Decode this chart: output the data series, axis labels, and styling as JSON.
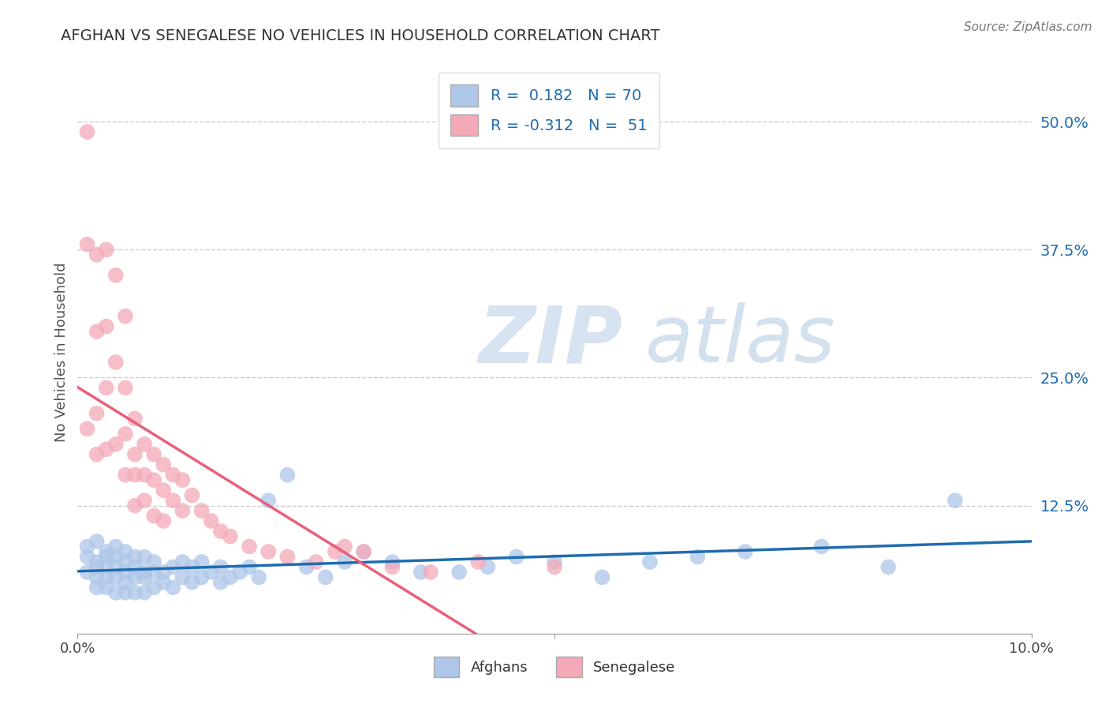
{
  "title": "AFGHAN VS SENEGALESE NO VEHICLES IN HOUSEHOLD CORRELATION CHART",
  "source": "Source: ZipAtlas.com",
  "ylabel": "No Vehicles in Household",
  "xlim": [
    0.0,
    0.1
  ],
  "ylim": [
    0.0,
    0.55
  ],
  "ytick_positions": [
    0.0,
    0.125,
    0.25,
    0.375,
    0.5
  ],
  "yticklabels": [
    "",
    "12.5%",
    "25.0%",
    "37.5%",
    "50.0%"
  ],
  "grid_color": "#cccccc",
  "background_color": "#ffffff",
  "afghan_color": "#aec6e8",
  "senegalese_color": "#f4a9b8",
  "afghan_line_color": "#1f6cb0",
  "senegalese_line_color": "#e8607a",
  "watermark_zip": "ZIP",
  "watermark_atlas": "atlas",
  "afghan_r": 0.182,
  "afghan_n": 70,
  "senegalese_r": -0.312,
  "senegalese_n": 51,
  "afghan_points_x": [
    0.001,
    0.001,
    0.001,
    0.002,
    0.002,
    0.002,
    0.002,
    0.002,
    0.003,
    0.003,
    0.003,
    0.003,
    0.003,
    0.004,
    0.004,
    0.004,
    0.004,
    0.004,
    0.005,
    0.005,
    0.005,
    0.005,
    0.005,
    0.006,
    0.006,
    0.006,
    0.006,
    0.007,
    0.007,
    0.007,
    0.007,
    0.008,
    0.008,
    0.008,
    0.009,
    0.009,
    0.01,
    0.01,
    0.011,
    0.011,
    0.012,
    0.012,
    0.013,
    0.013,
    0.014,
    0.015,
    0.015,
    0.016,
    0.017,
    0.018,
    0.019,
    0.02,
    0.022,
    0.024,
    0.026,
    0.028,
    0.03,
    0.033,
    0.036,
    0.04,
    0.043,
    0.046,
    0.05,
    0.055,
    0.06,
    0.065,
    0.07,
    0.078,
    0.085,
    0.092
  ],
  "afghan_points_y": [
    0.06,
    0.075,
    0.085,
    0.045,
    0.055,
    0.065,
    0.07,
    0.09,
    0.045,
    0.055,
    0.065,
    0.075,
    0.08,
    0.04,
    0.055,
    0.065,
    0.075,
    0.085,
    0.04,
    0.05,
    0.06,
    0.07,
    0.08,
    0.04,
    0.055,
    0.065,
    0.075,
    0.04,
    0.055,
    0.06,
    0.075,
    0.045,
    0.06,
    0.07,
    0.05,
    0.06,
    0.045,
    0.065,
    0.055,
    0.07,
    0.05,
    0.065,
    0.055,
    0.07,
    0.06,
    0.05,
    0.065,
    0.055,
    0.06,
    0.065,
    0.055,
    0.13,
    0.155,
    0.065,
    0.055,
    0.07,
    0.08,
    0.07,
    0.06,
    0.06,
    0.065,
    0.075,
    0.07,
    0.055,
    0.07,
    0.075,
    0.08,
    0.085,
    0.065,
    0.13
  ],
  "senegalese_points_x": [
    0.001,
    0.001,
    0.001,
    0.002,
    0.002,
    0.002,
    0.002,
    0.003,
    0.003,
    0.003,
    0.003,
    0.004,
    0.004,
    0.004,
    0.005,
    0.005,
    0.005,
    0.005,
    0.006,
    0.006,
    0.006,
    0.006,
    0.007,
    0.007,
    0.007,
    0.008,
    0.008,
    0.008,
    0.009,
    0.009,
    0.009,
    0.01,
    0.01,
    0.011,
    0.011,
    0.012,
    0.013,
    0.014,
    0.015,
    0.016,
    0.018,
    0.02,
    0.022,
    0.025,
    0.027,
    0.028,
    0.03,
    0.033,
    0.037,
    0.042,
    0.05
  ],
  "senegalese_points_y": [
    0.38,
    0.49,
    0.2,
    0.37,
    0.295,
    0.215,
    0.175,
    0.375,
    0.3,
    0.24,
    0.18,
    0.35,
    0.265,
    0.185,
    0.31,
    0.24,
    0.195,
    0.155,
    0.21,
    0.175,
    0.155,
    0.125,
    0.185,
    0.155,
    0.13,
    0.175,
    0.15,
    0.115,
    0.165,
    0.14,
    0.11,
    0.155,
    0.13,
    0.15,
    0.12,
    0.135,
    0.12,
    0.11,
    0.1,
    0.095,
    0.085,
    0.08,
    0.075,
    0.07,
    0.08,
    0.085,
    0.08,
    0.065,
    0.06,
    0.07,
    0.065
  ]
}
